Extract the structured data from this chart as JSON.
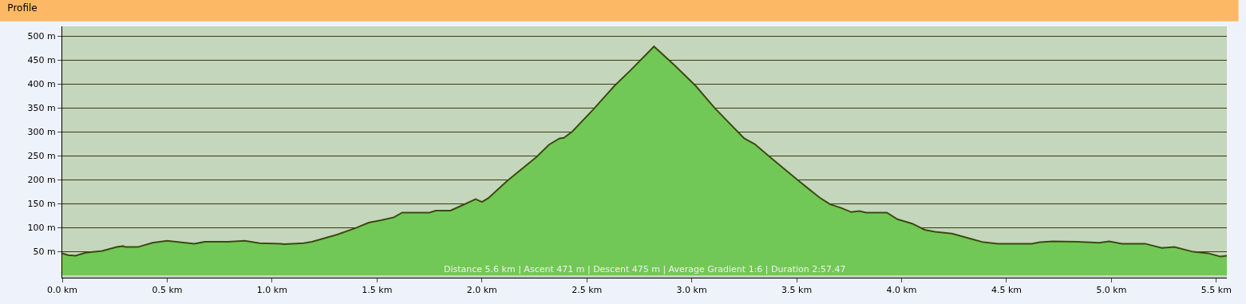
{
  "chart_data": {
    "type": "area",
    "title": "Profile",
    "x": [
      0,
      0.027,
      0.064,
      0.11,
      0.19,
      0.26,
      0.29,
      0.3,
      0.36,
      0.43,
      0.5,
      0.56,
      0.63,
      0.68,
      0.79,
      0.87,
      0.94,
      1.04,
      1.06,
      1.15,
      1.19,
      1.31,
      1.4,
      1.46,
      1.52,
      1.58,
      1.62,
      1.75,
      1.78,
      1.85,
      1.9,
      1.97,
      2.0,
      2.03,
      2.12,
      2.26,
      2.32,
      2.37,
      2.39,
      2.43,
      2.53,
      2.63,
      2.71,
      2.82,
      2.92,
      3.02,
      3.11,
      3.25,
      3.3,
      3.37,
      3.51,
      3.61,
      3.66,
      3.71,
      3.76,
      3.8,
      3.83,
      3.93,
      3.98,
      4.05,
      4.11,
      4.16,
      4.24,
      4.34,
      4.39,
      4.46,
      4.62,
      4.66,
      4.72,
      4.84,
      4.94,
      4.99,
      5.05,
      5.16,
      5.24,
      5.3,
      5.39,
      5.46,
      5.52,
      5.55
    ],
    "series": [
      {
        "color": "#72c856",
        "values": [
          46,
          42,
          41,
          47,
          51,
          59,
          61,
          59,
          59,
          68,
          72,
          69,
          66,
          70,
          70,
          72,
          67,
          66,
          65,
          67,
          70,
          85,
          99,
          110,
          115,
          121,
          131,
          131,
          135,
          135,
          145,
          159,
          153,
          161,
          197,
          247,
          273,
          286,
          287,
          300,
          346,
          395,
          429,
          478,
          438,
          395,
          349,
          286,
          274,
          248,
          197,
          162,
          148,
          141,
          132,
          134,
          131,
          131,
          117,
          108,
          95,
          91,
          87,
          75,
          69,
          66,
          66,
          69,
          71,
          70,
          68,
          71,
          66,
          66,
          57,
          59,
          49,
          46,
          39,
          41
        ]
      }
    ],
    "xlim": [
      0,
      5.55
    ],
    "ylim": [
      -5,
      520
    ],
    "xticks": [
      {
        "value": 0,
        "label": "0.0 km"
      },
      {
        "value": 0.5,
        "label": "0.5 km"
      },
      {
        "value": 1,
        "label": "1.0 km"
      },
      {
        "value": 1.5,
        "label": "1.5 km"
      },
      {
        "value": 2,
        "label": "2.0 km"
      },
      {
        "value": 2.5,
        "label": "2.5 km"
      },
      {
        "value": 3,
        "label": "3.0 km"
      },
      {
        "value": 3.5,
        "label": "3.5 km"
      },
      {
        "value": 4,
        "label": "4.0 km"
      },
      {
        "value": 4.5,
        "label": "4.5 km"
      },
      {
        "value": 5,
        "label": "5.0 km"
      },
      {
        "value": 5.5,
        "label": "5.5 km"
      }
    ],
    "yticks": [
      {
        "value": 50,
        "label": "50 m"
      },
      {
        "value": 100,
        "label": "100 m"
      },
      {
        "value": 150,
        "label": "150 m"
      },
      {
        "value": 200,
        "label": "200 m"
      },
      {
        "value": 250,
        "label": "250 m"
      },
      {
        "value": 300,
        "label": "300 m"
      },
      {
        "value": 350,
        "label": "350 m"
      },
      {
        "value": 400,
        "label": "400 m"
      },
      {
        "value": 450,
        "label": "450 m"
      },
      {
        "value": 500,
        "label": "500 m"
      }
    ],
    "grid": "y",
    "annotations": [
      "Distance 5.6 km | Ascent 471 m | Descent 475 m | Average Gradient 1:6 | Duration 2:57.47"
    ]
  }
}
